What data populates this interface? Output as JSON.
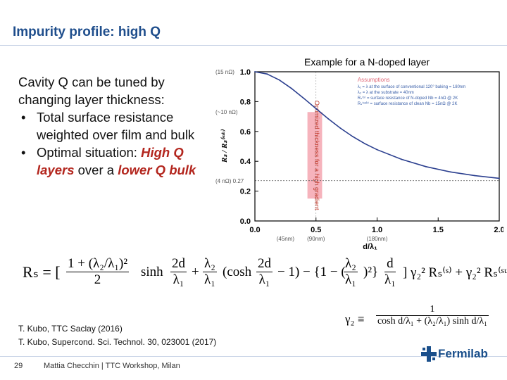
{
  "slide": {
    "title": "Impurity profile: high Q",
    "example_label": "Example for a N-doped layer",
    "intro": "Cavity Q can be tuned by changing layer thickness:",
    "bullet1": "Total surface resistance weighted over film and bulk",
    "bullet2_prefix": "Optimal situation: ",
    "bullet2_high": "High Q layers",
    "bullet2_mid": " over a ",
    "bullet2_low": "lower Q bulk",
    "bullet_glyph": "•"
  },
  "formula": {
    "rs_main": "Rₛ = [",
    "f1_num": "1 + (λ₂/λ₁)²",
    "f1_den": "2",
    "sinh_part": "sinh",
    "f2_num": "2d",
    "f2_den": "λ₁",
    "plus1": "+",
    "f3_num": "λ₂",
    "f3_den": "λ₁",
    "cosh_part": "(cosh",
    "f4_num": "2d",
    "f4_den": "λ₁",
    "minus_one": "− 1) − {1 − (",
    "f5_num": "λ₂",
    "f5_den": "λ₁",
    "close_sq": ")²}",
    "f6_num": "d",
    "f6_den": "λ₁",
    "tail": "] γ₂² Rₛ⁽ˢ⁾ + γ₂² Rₛ⁽ˢᵘᵇ⁾"
  },
  "gamma": {
    "lhs": "γ₂ ≡",
    "num": "1",
    "den": "cosh d/λ₁ + (λ₂/λ₁) sinh d/λ₁"
  },
  "references": [
    "T. Kubo, TTC Saclay (2016)",
    "T. Kubo, Supercond. Sci. Technol. 30, 023001 (2017)"
  ],
  "footer": {
    "page_number": "29",
    "text": "Mattia Checchin | TTC Workshop, Milan",
    "logo_text": "Fermilab"
  },
  "colors": {
    "title": "#1f4e8c",
    "curve": "#2b3f8f",
    "band": "#f4a6b0",
    "accent_red": "#b3261e",
    "annotation_red": "#e06b7a",
    "annotation_blue": "#3a5fa8"
  },
  "chart_data": {
    "type": "line",
    "xlabel": "d/λ₁",
    "ylabel": "Rₛ / Rₛ⁽ˢᵘᵇ⁾",
    "xlim": [
      0,
      2.0
    ],
    "ylim": [
      0,
      1.0
    ],
    "xticks": [
      "0.0",
      "0.5",
      "1.0",
      "1.5",
      "2.0"
    ],
    "yticks": [
      "0.0",
      "0.2",
      "0.4",
      "0.6",
      "0.8",
      "1.0"
    ],
    "left_annotations": [
      {
        "y": 1.0,
        "text": "(15 nΩ)"
      },
      {
        "y": 0.73,
        "text": "(~10 nΩ)"
      },
      {
        "y": 0.27,
        "text": "(4 nΩ) 0.27"
      }
    ],
    "bottom_annotations": [
      {
        "x": 0.25,
        "text": "(45nm)"
      },
      {
        "x": 0.5,
        "text": "(90nm)"
      },
      {
        "x": 1.0,
        "text": "(180nm)"
      }
    ],
    "reference_line_y": 0.27,
    "band": {
      "x_from": 0.43,
      "x_to": 0.55,
      "label": "Optimized thickness for a high gradient"
    },
    "series": [
      {
        "x": [
          0.0,
          0.1,
          0.2,
          0.3,
          0.4,
          0.5,
          0.6,
          0.7,
          0.8,
          0.9,
          1.0,
          1.2,
          1.4,
          1.6,
          1.8,
          2.0
        ],
        "values": [
          1.0,
          0.985,
          0.945,
          0.888,
          0.822,
          0.753,
          0.685,
          0.622,
          0.566,
          0.518,
          0.478,
          0.413,
          0.364,
          0.329,
          0.304,
          0.286
        ]
      }
    ],
    "legend_title": "Assumptions",
    "legend_lines": [
      "λ₁ = λ at the surface of conventional 120° baking = 180nm",
      "λ₂ = λ at the substrate = 40nm",
      "Rₛ⁽ˢ⁾ = surface resistance of N-doped Nb = 4nΩ @ 2K",
      "Rₛ⁽ˢᵘᵇ⁾ = surface resistance of clean Nb = 15nΩ @ 2K"
    ],
    "grid": false
  }
}
